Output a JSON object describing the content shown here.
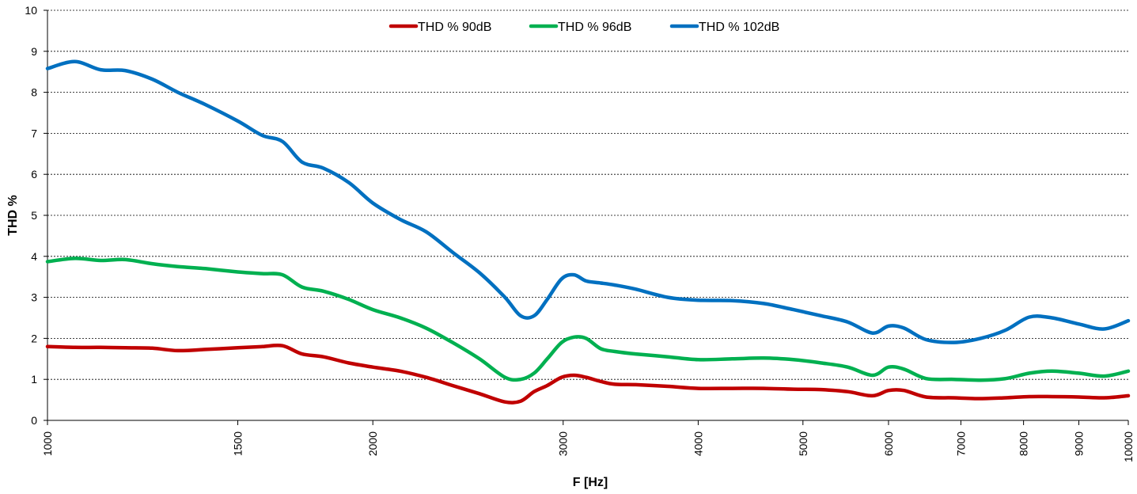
{
  "chart_data": {
    "type": "line",
    "title": "",
    "xlabel": "F [Hz]",
    "ylabel": "THD %",
    "xscale": "log",
    "xlim": [
      1000,
      10000
    ],
    "ylim": [
      0,
      10
    ],
    "grid": "horizontal dashed",
    "legend_position": "top-center",
    "y_ticks": [
      "0",
      "1",
      "2",
      "3",
      "4",
      "5",
      "6",
      "7",
      "8",
      "9",
      "10"
    ],
    "x_ticks": [
      "1000",
      "1500",
      "2000",
      "3000",
      "4000",
      "5000",
      "6000",
      "7000",
      "8000",
      "9000",
      "10000"
    ],
    "series": [
      {
        "name": "THD % 90dB",
        "color": "#C00000",
        "x": [
          1000,
          1060,
          1120,
          1180,
          1250,
          1320,
          1400,
          1500,
          1580,
          1650,
          1720,
          1800,
          1900,
          2000,
          2120,
          2240,
          2370,
          2510,
          2650,
          2740,
          2820,
          2900,
          2990,
          3070,
          3150,
          3250,
          3350,
          3500,
          3750,
          4000,
          4300,
          4600,
          4900,
          5200,
          5500,
          5800,
          6000,
          6200,
          6500,
          6900,
          7300,
          7700,
          8100,
          8500,
          9000,
          9500,
          10000
        ],
        "y": [
          1.8,
          1.78,
          1.78,
          1.77,
          1.76,
          1.7,
          1.73,
          1.77,
          1.8,
          1.82,
          1.62,
          1.55,
          1.4,
          1.3,
          1.2,
          1.05,
          0.85,
          0.65,
          0.45,
          0.47,
          0.7,
          0.85,
          1.05,
          1.1,
          1.05,
          0.95,
          0.88,
          0.87,
          0.83,
          0.78,
          0.78,
          0.78,
          0.76,
          0.75,
          0.7,
          0.6,
          0.73,
          0.73,
          0.57,
          0.55,
          0.53,
          0.55,
          0.58,
          0.58,
          0.57,
          0.55,
          0.6
        ]
      },
      {
        "name": "THD % 96dB",
        "color": "#00B050",
        "x": [
          1000,
          1060,
          1120,
          1180,
          1250,
          1320,
          1400,
          1500,
          1580,
          1650,
          1720,
          1800,
          1900,
          2000,
          2120,
          2240,
          2370,
          2510,
          2650,
          2740,
          2820,
          2900,
          2990,
          3070,
          3150,
          3250,
          3350,
          3500,
          3750,
          4000,
          4300,
          4600,
          4900,
          5200,
          5500,
          5800,
          6000,
          6200,
          6500,
          6900,
          7300,
          7700,
          8100,
          8500,
          9000,
          9500,
          10000
        ],
        "y": [
          3.87,
          3.95,
          3.9,
          3.92,
          3.82,
          3.75,
          3.7,
          3.62,
          3.58,
          3.55,
          3.25,
          3.15,
          2.95,
          2.7,
          2.5,
          2.25,
          1.9,
          1.5,
          1.05,
          1.0,
          1.15,
          1.5,
          1.9,
          2.03,
          2.0,
          1.75,
          1.68,
          1.62,
          1.55,
          1.48,
          1.5,
          1.52,
          1.48,
          1.4,
          1.3,
          1.1,
          1.3,
          1.25,
          1.02,
          1.0,
          0.98,
          1.02,
          1.15,
          1.2,
          1.15,
          1.08,
          1.2
        ]
      },
      {
        "name": "THD % 102dB",
        "color": "#0070C0",
        "x": [
          1000,
          1060,
          1120,
          1180,
          1250,
          1320,
          1400,
          1500,
          1580,
          1650,
          1720,
          1800,
          1900,
          2000,
          2120,
          2240,
          2370,
          2510,
          2650,
          2740,
          2820,
          2900,
          2990,
          3070,
          3150,
          3250,
          3350,
          3500,
          3750,
          4000,
          4300,
          4600,
          4900,
          5200,
          5500,
          5800,
          6000,
          6200,
          6500,
          6900,
          7300,
          7700,
          8100,
          8500,
          9000,
          9500,
          10000
        ],
        "y": [
          8.58,
          8.75,
          8.55,
          8.53,
          8.32,
          8.0,
          7.7,
          7.3,
          6.95,
          6.8,
          6.3,
          6.15,
          5.8,
          5.3,
          4.9,
          4.6,
          4.1,
          3.6,
          3.0,
          2.55,
          2.55,
          2.95,
          3.45,
          3.55,
          3.4,
          3.35,
          3.3,
          3.2,
          3.0,
          2.93,
          2.92,
          2.85,
          2.7,
          2.55,
          2.4,
          2.13,
          2.3,
          2.25,
          1.97,
          1.9,
          2.0,
          2.2,
          2.52,
          2.5,
          2.35,
          2.23,
          2.43
        ]
      }
    ]
  }
}
